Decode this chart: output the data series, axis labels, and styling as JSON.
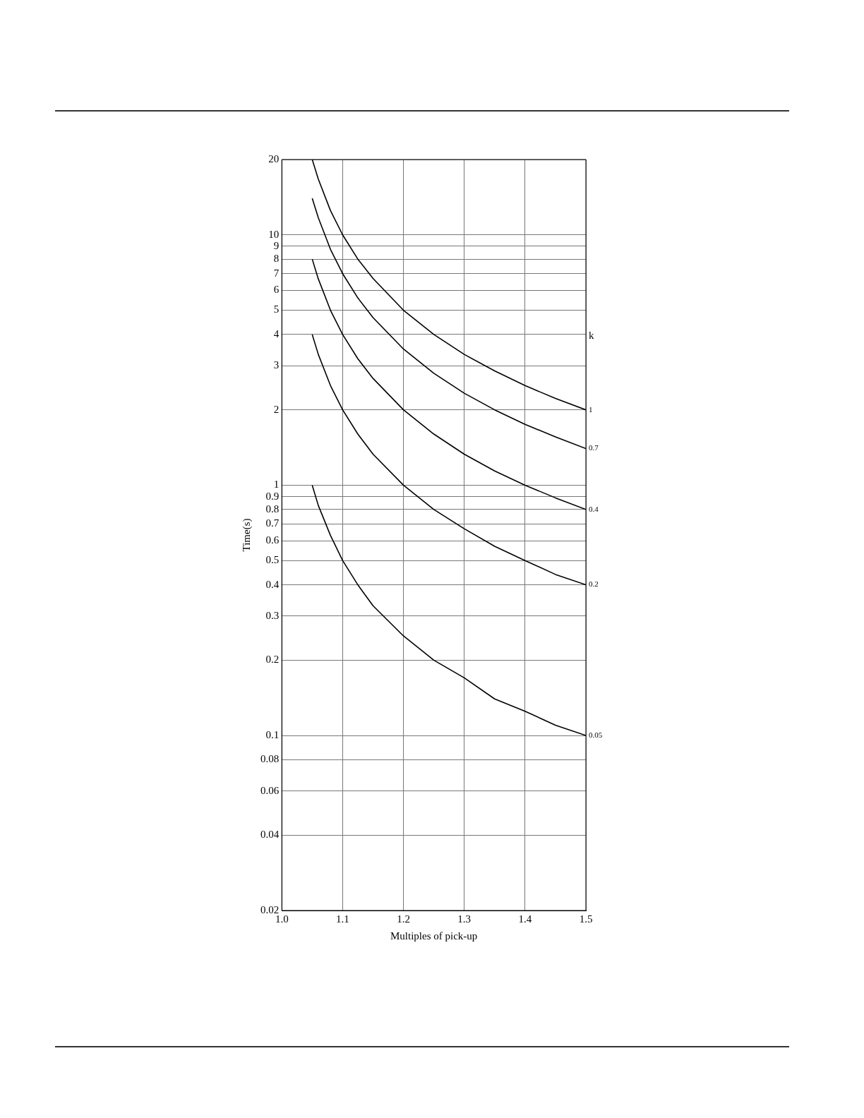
{
  "chart_data": {
    "type": "line",
    "xlabel": "Multiples of pick-up",
    "ylabel": "Time(s)",
    "legend_title": "k",
    "log": "y",
    "grid": true,
    "marker": "none",
    "line_style": "solid",
    "xlim": [
      1,
      1.5
    ],
    "xticks": [
      {
        "value": 1,
        "label": "1.0"
      },
      1.1,
      1.2,
      1.3,
      1.4,
      1.5
    ],
    "ylim": [
      0.02,
      20
    ],
    "yticks": [
      0.02,
      0.04,
      0.06,
      0.08,
      0.1,
      0.2,
      0.3,
      0.4,
      0.5,
      0.6,
      0.7,
      0.8,
      0.9,
      1,
      2,
      3,
      4,
      5,
      6,
      7,
      8,
      9,
      10,
      20
    ],
    "x": [
      1.05,
      1.06,
      1.08,
      1.1,
      1.125,
      1.15,
      1.2,
      1.25,
      1.3,
      1.35,
      1.4,
      1.45,
      1.5
    ],
    "series": [
      {
        "name": "1",
        "color": "#000000",
        "values": [
          20,
          16.7,
          12.5,
          10,
          8,
          6.7,
          5,
          4,
          3.33,
          2.86,
          2.5,
          2.22,
          2
        ]
      },
      {
        "name": "0.7",
        "color": "#000000",
        "values": [
          14,
          11.7,
          8.75,
          7,
          5.6,
          4.67,
          3.5,
          2.8,
          2.33,
          2,
          1.75,
          1.56,
          1.4
        ]
      },
      {
        "name": "0.4",
        "color": "#000000",
        "values": [
          8,
          6.67,
          5,
          4,
          3.2,
          2.67,
          2,
          1.6,
          1.33,
          1.14,
          1,
          0.89,
          0.8
        ]
      },
      {
        "name": "0.2",
        "color": "#000000",
        "values": [
          4,
          3.33,
          2.5,
          2,
          1.6,
          1.33,
          1,
          0.8,
          0.67,
          0.57,
          0.5,
          0.44,
          0.4
        ]
      },
      {
        "name": "0.05",
        "color": "#000000",
        "values": [
          1,
          0.83,
          0.63,
          0.5,
          0.4,
          0.33,
          0.25,
          0.2,
          0.17,
          0.14,
          0.125,
          0.11,
          0.1
        ]
      }
    ]
  }
}
